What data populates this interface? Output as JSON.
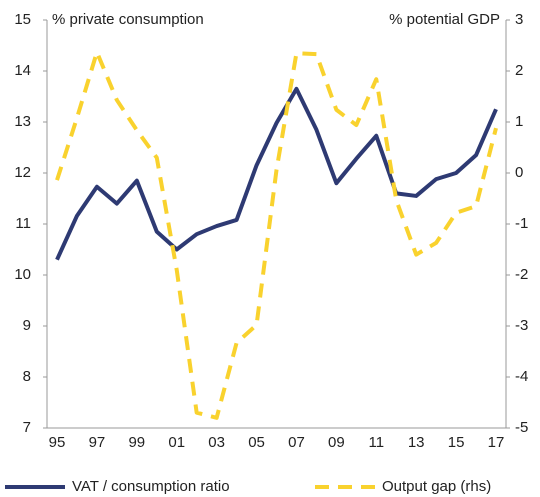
{
  "chart_data": {
    "type": "line",
    "y_label": "% private consumption",
    "y2_label": "% potential GDP",
    "categories": [
      "95",
      null,
      "97",
      null,
      "99",
      null,
      "01",
      null,
      "03",
      null,
      "05",
      null,
      "07",
      null,
      "09",
      null,
      "11",
      null,
      "13",
      null,
      "15",
      null,
      "17"
    ],
    "series": [
      {
        "name": "VAT / consumption ratio",
        "color": "#2e3a73",
        "axis": "y",
        "values": [
          10.3,
          11.16,
          11.73,
          11.4,
          11.85,
          10.85,
          10.5,
          10.8,
          10.96,
          11.08,
          12.15,
          12.98,
          13.65,
          12.85,
          11.8,
          12.28,
          12.73,
          11.6,
          11.55,
          11.88,
          12.0,
          12.35,
          13.25
        ]
      },
      {
        "name": "Output gap (rhs)",
        "color": "#f9d22e",
        "axis": "y2",
        "dashed": true,
        "values": [
          -0.14,
          1.08,
          2.37,
          1.43,
          0.84,
          0.3,
          -1.9,
          -4.7,
          -4.8,
          -3.33,
          -2.98,
          0.06,
          2.35,
          2.33,
          1.24,
          0.94,
          1.84,
          -0.53,
          -1.6,
          -1.37,
          -0.78,
          -0.65,
          0.88
        ]
      }
    ],
    "ylim": [
      7,
      15
    ],
    "yticks": [
      7,
      8,
      9,
      10,
      11,
      12,
      13,
      14,
      15
    ],
    "y2lim": [
      -5,
      3
    ],
    "y2ticks": [
      -5,
      -4,
      -3,
      -2,
      -1,
      0,
      1,
      2,
      3
    ],
    "grid": false,
    "legend": "bottom"
  }
}
